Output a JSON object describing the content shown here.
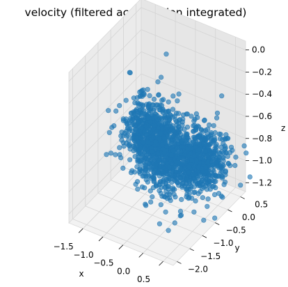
{
  "chart_data": {
    "type": "scatter",
    "projection": "3d",
    "title": "velocity (filtered acceleration integrated)",
    "xlabel": "x",
    "ylabel": "y",
    "zlabel": "z",
    "xlim": [
      -1.85,
      0.75
    ],
    "ylim": [
      -2.15,
      0.7
    ],
    "zlim": [
      -1.28,
      0.08
    ],
    "xticks": [
      "−1.5",
      "−1.0",
      "−0.5",
      "0.0",
      "0.5"
    ],
    "xtick_values": [
      -1.5,
      -1.0,
      -0.5,
      0.0,
      0.5
    ],
    "yticks": [
      "−2.0",
      "−1.5",
      "−1.0",
      "−0.5",
      "0.0",
      "0.5"
    ],
    "ytick_values": [
      -2.0,
      -1.5,
      -1.0,
      -0.5,
      0.0,
      0.5
    ],
    "zticks": [
      "−1.2",
      "−1.0",
      "−0.8",
      "−0.6",
      "−0.4",
      "−0.2",
      "0.0"
    ],
    "ztick_values": [
      -1.2,
      -1.0,
      -0.8,
      -0.6,
      -0.4,
      -0.2,
      0.0
    ],
    "grid": true,
    "legend": "none",
    "marker_color": "#1f77b4",
    "pane_color": "#f2f2f2",
    "grid_color": "#d9d9d9",
    "cluster_centers": [
      {
        "x": -1.0,
        "y": -0.3,
        "z": -0.75
      },
      {
        "x": -0.15,
        "y": -0.95,
        "z": -0.72
      },
      {
        "x": 0.35,
        "y": -0.45,
        "z": -0.78
      }
    ],
    "cluster_spread": {
      "x": 0.3,
      "y": 0.3,
      "z": 0.12
    },
    "n_points": 1800
  }
}
